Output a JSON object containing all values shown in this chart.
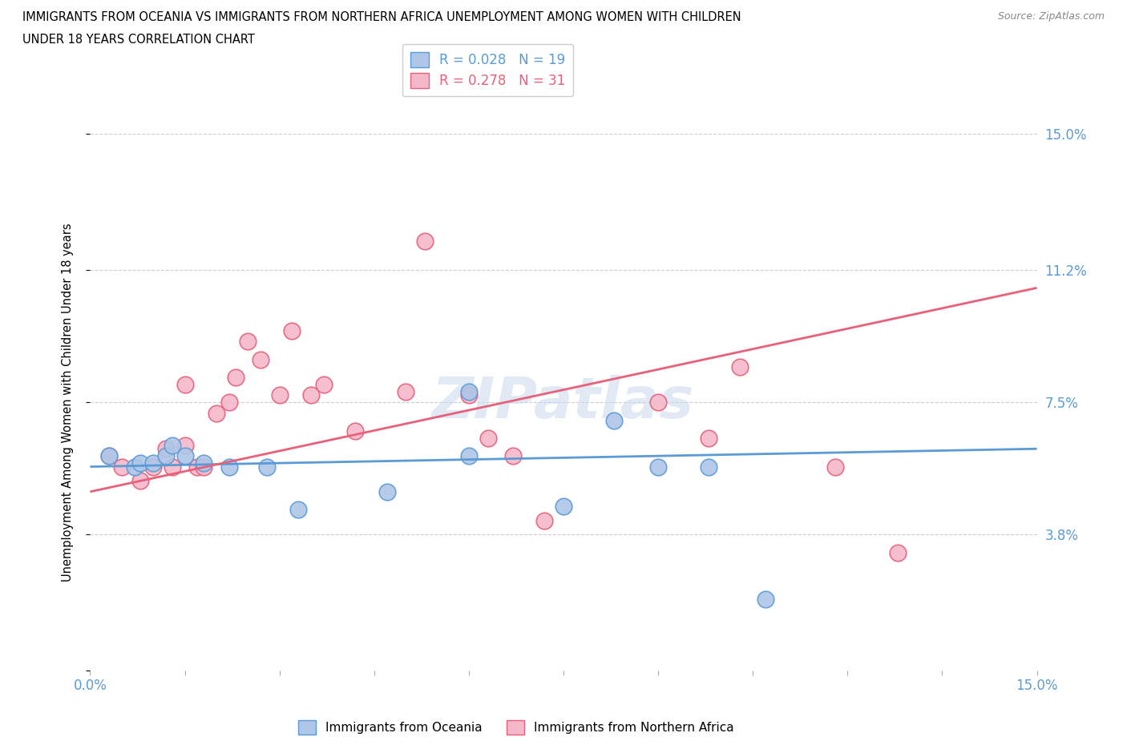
{
  "title_line1": "IMMIGRANTS FROM OCEANIA VS IMMIGRANTS FROM NORTHERN AFRICA UNEMPLOYMENT AMONG WOMEN WITH CHILDREN",
  "title_line2": "UNDER 18 YEARS CORRELATION CHART",
  "source": "Source: ZipAtlas.com",
  "ylabel": "Unemployment Among Women with Children Under 18 years",
  "xlim": [
    0.0,
    0.15
  ],
  "ylim": [
    0.0,
    0.15
  ],
  "ytick_vals": [
    0.0,
    0.038,
    0.075,
    0.112,
    0.15
  ],
  "ytick_labels": [
    "",
    "3.8%",
    "7.5%",
    "11.2%",
    "15.0%"
  ],
  "grid_vals": [
    0.038,
    0.075,
    0.112,
    0.15
  ],
  "oceania_color": "#aec6e8",
  "oceania_color_dark": "#5b9bd5",
  "northern_africa_color": "#f4b8ca",
  "northern_africa_color_dark": "#e8607a",
  "oceania_R": 0.028,
  "oceania_N": 19,
  "northern_africa_R": 0.278,
  "northern_africa_N": 31,
  "legend_label_1": "Immigrants from Oceania",
  "legend_label_2": "Immigrants from Northern Africa",
  "watermark": "ZIPatlas",
  "oceania_trend_x": [
    0.0,
    0.15
  ],
  "oceania_trend_y": [
    0.057,
    0.062
  ],
  "northern_africa_trend_x": [
    0.0,
    0.15
  ],
  "northern_africa_trend_y": [
    0.05,
    0.107
  ],
  "oceania_x": [
    0.003,
    0.007,
    0.008,
    0.01,
    0.012,
    0.013,
    0.015,
    0.018,
    0.022,
    0.028,
    0.033,
    0.047,
    0.06,
    0.06,
    0.075,
    0.083,
    0.09,
    0.098,
    0.107
  ],
  "oceania_y": [
    0.06,
    0.057,
    0.058,
    0.058,
    0.06,
    0.063,
    0.06,
    0.058,
    0.057,
    0.057,
    0.045,
    0.05,
    0.078,
    0.06,
    0.046,
    0.07,
    0.057,
    0.057,
    0.02
  ],
  "northern_africa_x": [
    0.003,
    0.005,
    0.008,
    0.01,
    0.012,
    0.013,
    0.015,
    0.015,
    0.017,
    0.018,
    0.02,
    0.022,
    0.023,
    0.025,
    0.027,
    0.03,
    0.032,
    0.035,
    0.037,
    0.042,
    0.05,
    0.053,
    0.06,
    0.063,
    0.067,
    0.072,
    0.09,
    0.098,
    0.103,
    0.118,
    0.128
  ],
  "northern_africa_y": [
    0.06,
    0.057,
    0.053,
    0.057,
    0.062,
    0.057,
    0.063,
    0.08,
    0.057,
    0.057,
    0.072,
    0.075,
    0.082,
    0.092,
    0.087,
    0.077,
    0.095,
    0.077,
    0.08,
    0.067,
    0.078,
    0.12,
    0.077,
    0.065,
    0.06,
    0.042,
    0.075,
    0.065,
    0.085,
    0.057,
    0.033
  ]
}
